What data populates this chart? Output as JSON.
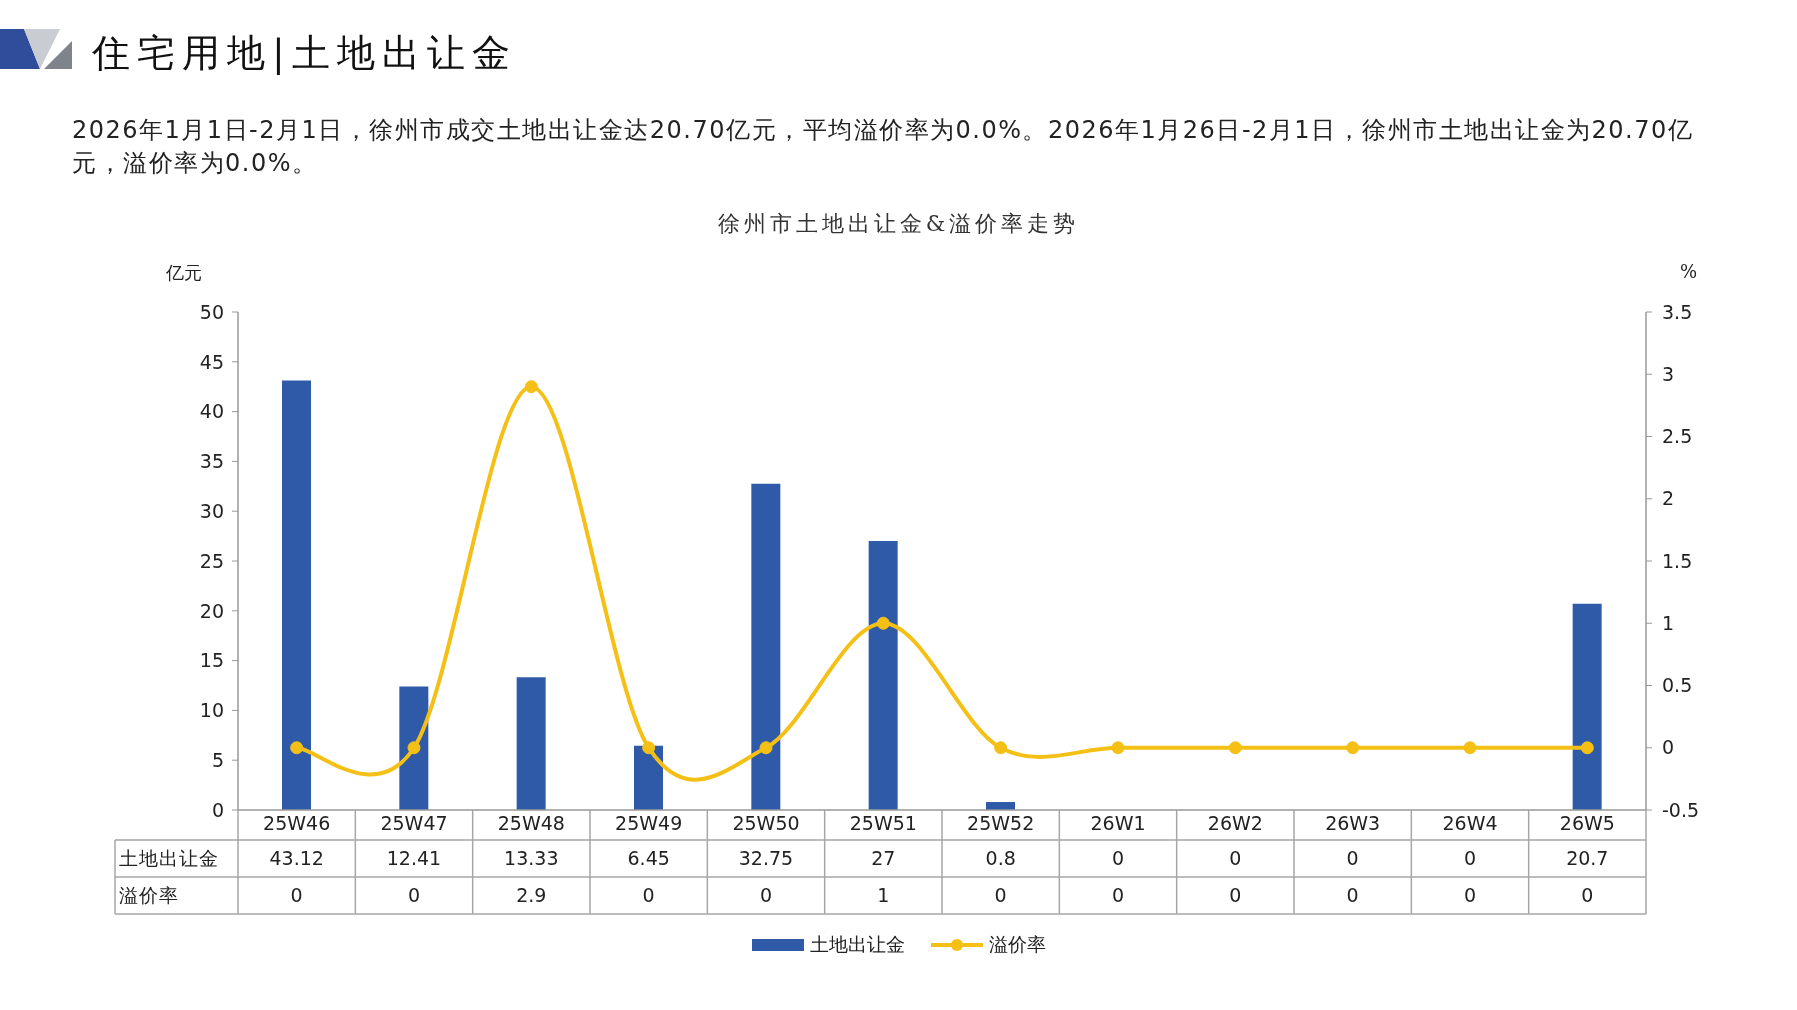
{
  "chart_data": {
    "type": "bar",
    "title": "住宅用地|土地出让金",
    "subtitle": "徐州市土地出让金&溢价率走势",
    "annotations": [
      "2026年1月1日-2月1日，徐州市成交土地出让金达20.70亿元，平均溢价率为0.0%。2026年1月26日-2月1日，徐州市土地出让金为20.70亿元，溢价率为0.0%。"
    ],
    "ylabel": "亿元",
    "y2label": "%",
    "categories": [
      "25W46",
      "25W47",
      "25W48",
      "25W49",
      "25W50",
      "25W51",
      "25W52",
      "26W1",
      "26W2",
      "26W3",
      "26W4",
      "26W5"
    ],
    "series": [
      {
        "name": "土地出让金",
        "color": "#2f5aa8",
        "values": [
          43.12,
          12.41,
          13.33,
          6.45,
          32.75,
          27,
          0.8,
          0,
          0,
          0,
          0,
          20.7
        ]
      },
      {
        "name": "溢价率",
        "type": "line",
        "axis": "y2",
        "color": "#f5c015",
        "values": [
          0,
          0,
          2.9,
          0,
          0,
          1,
          0,
          0,
          0,
          0,
          0,
          0
        ]
      }
    ],
    "ylim": [
      0,
      50
    ],
    "yticks": [
      0,
      5,
      10,
      15,
      20,
      25,
      30,
      35,
      40,
      45,
      50
    ],
    "y2lim": [
      -0.5,
      3.5
    ],
    "y2ticks": [
      -0.5,
      0,
      0.5,
      1,
      1.5,
      2,
      2.5,
      3,
      3.5
    ],
    "marker": "circle",
    "data_labels": true,
    "legend": "bottom"
  }
}
